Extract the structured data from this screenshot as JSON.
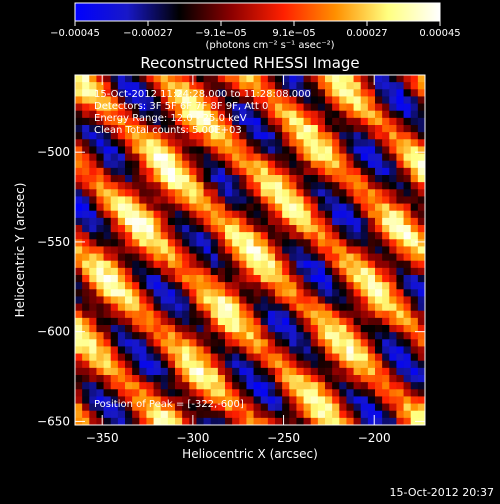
{
  "chart_data": {
    "type": "heatmap",
    "title": "Reconstructed RHESSI Image",
    "xlabel": "Heliocentric X (arcsec)",
    "ylabel": "Heliocentric Y (arcsec)",
    "xlim": [
      -365,
      -172
    ],
    "ylim": [
      -652,
      -457
    ],
    "x_ticks": [
      {
        "v": -350,
        "label": "−350"
      },
      {
        "v": -300,
        "label": "−300"
      },
      {
        "v": -250,
        "label": "−250"
      },
      {
        "v": -200,
        "label": "−200"
      }
    ],
    "y_ticks": [
      {
        "v": -500,
        "label": "−500"
      },
      {
        "v": -550,
        "label": "−550"
      },
      {
        "v": -600,
        "label": "−600"
      },
      {
        "v": -650,
        "label": "−650"
      }
    ],
    "colorbar": {
      "range": [
        -0.00045,
        0.00045
      ],
      "tick_labels": [
        "−0.00045",
        "−0.00027",
        "−9.1e−05",
        "9.1e−05",
        "0.00027",
        "0.00045"
      ],
      "units_text": "(photons cm⁻² s⁻¹ asec⁻²)",
      "stops": [
        "#0000ff",
        "#1818c8",
        "#000000",
        "#8c0000",
        "#ff2000",
        "#ff9000",
        "#ffff80",
        "#ffffff"
      ]
    },
    "annotations": [
      "15-Oct-2012 11:24:28.000 to 11:28:08.000",
      "Detectors: 3F 5F 6F 7F 8F 9F, Att 0",
      "Energy Range: 12.0 - 25.0 keV",
      "Clean    Total counts: 5.00E+03"
    ],
    "peak_text": "Position of Peak = [-322,-600]",
    "peak": {
      "x": -322,
      "y": -600
    },
    "pattern": {
      "grid": 49,
      "stripe_period": 12,
      "gaussian_center": [
        16,
        16
      ],
      "seed": 7
    }
  },
  "footer": {
    "timestamp": "15-Oct-2012 20:37"
  }
}
